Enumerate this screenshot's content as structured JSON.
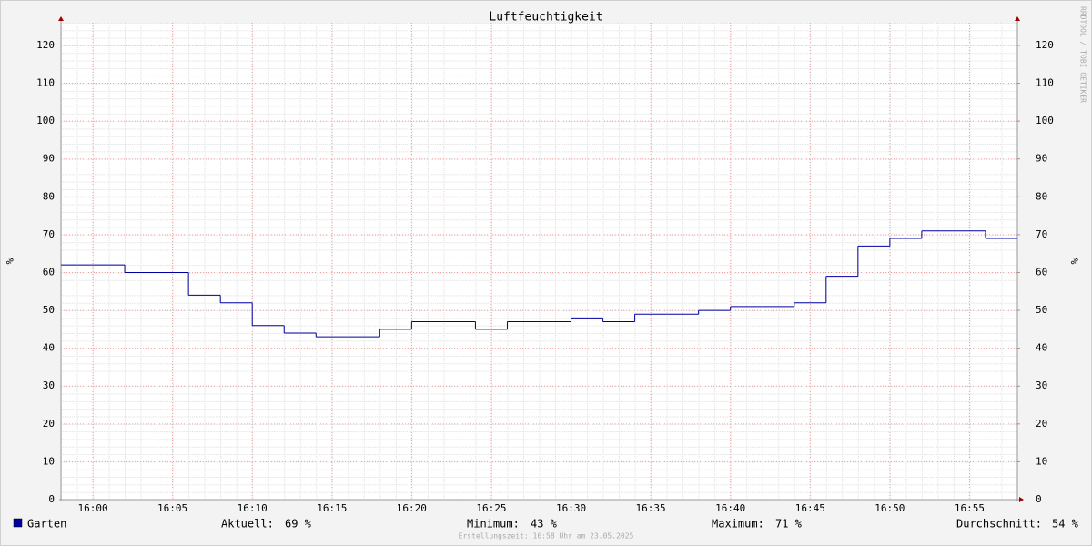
{
  "chart_data": {
    "type": "step-line",
    "title": "Luftfeuchtigkeit",
    "ylabel": "%",
    "y2label": "%",
    "watermark": "RRDTOOL / TOBI OETIKER",
    "xlim": [
      "15:58",
      "16:58"
    ],
    "xticks": [
      "16:00",
      "16:05",
      "16:10",
      "16:15",
      "16:20",
      "16:25",
      "16:30",
      "16:35",
      "16:40",
      "16:45",
      "16:50",
      "16:55"
    ],
    "ylim": [
      0,
      126
    ],
    "yticks": [
      0,
      10,
      20,
      30,
      40,
      50,
      60,
      70,
      80,
      90,
      100,
      110,
      120
    ],
    "y2lim": [
      0,
      126
    ],
    "y2ticks": [
      0,
      10,
      20,
      30,
      40,
      50,
      60,
      70,
      80,
      90,
      100,
      110,
      120
    ],
    "grid": true,
    "x": [
      "15:58",
      "16:00",
      "16:02",
      "16:04",
      "16:06",
      "16:08",
      "16:10",
      "16:12",
      "16:14",
      "16:16",
      "16:18",
      "16:20",
      "16:22",
      "16:24",
      "16:26",
      "16:28",
      "16:30",
      "16:32",
      "16:34",
      "16:36",
      "16:38",
      "16:40",
      "16:42",
      "16:44",
      "16:46",
      "16:48",
      "16:50",
      "16:52",
      "16:54",
      "16:56"
    ],
    "series": [
      {
        "name": "Garten",
        "color": "#0000a0",
        "values": [
          62,
          62,
          60,
          60,
          54,
          52,
          46,
          44,
          43,
          43,
          45,
          47,
          47,
          45,
          47,
          47,
          48,
          47,
          49,
          49,
          50,
          51,
          51,
          52,
          59,
          67,
          69,
          71,
          71,
          69
        ]
      }
    ],
    "stats": [
      {
        "label": "Aktuell:",
        "value": "69 %"
      },
      {
        "label": "Minimum:",
        "value": "43 %"
      },
      {
        "label": "Maximum:",
        "value": "71 %"
      },
      {
        "label": "Durchschnitt:",
        "value": "54 %"
      }
    ],
    "footer": "Erstellungszeit: 16:58 Uhr am 23.05.2025"
  }
}
